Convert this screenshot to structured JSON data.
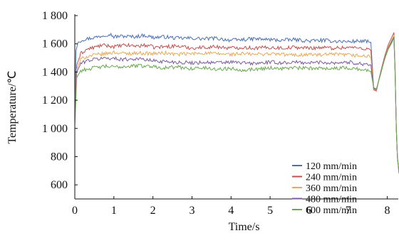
{
  "chart_data": {
    "type": "line",
    "xlabel": "Time/s",
    "ylabel": "Temperature/℃",
    "xlim": [
      0,
      8.3
    ],
    "ylim": [
      500,
      1800
    ],
    "x_ticks": [
      {
        "value": 0,
        "label": "0"
      },
      {
        "value": 1,
        "label": "1"
      },
      {
        "value": 2,
        "label": "2"
      },
      {
        "value": 3,
        "label": "3"
      },
      {
        "value": 4,
        "label": "4"
      },
      {
        "value": 5,
        "label": "5"
      },
      {
        "value": 6,
        "label": "6"
      },
      {
        "value": 7,
        "label": "7"
      },
      {
        "value": 8,
        "label": "8"
      }
    ],
    "y_ticks": [
      {
        "value": 600,
        "label": "600"
      },
      {
        "value": 800,
        "label": "800"
      },
      {
        "value": 1000,
        "label": "1 000"
      },
      {
        "value": 1200,
        "label": "1 200"
      },
      {
        "value": 1400,
        "label": "1 400"
      },
      {
        "value": 1600,
        "label": "1 600"
      },
      {
        "value": 1800,
        "label": "1 800"
      }
    ],
    "grid": false,
    "legend_position": "right",
    "series": [
      {
        "name": "120 mm/min",
        "color": "#4a6fb5",
        "points": [
          [
            0,
            1150
          ],
          [
            0.03,
            1550
          ],
          [
            0.08,
            1610
          ],
          [
            0.2,
            1630
          ],
          [
            0.4,
            1640
          ],
          [
            0.6,
            1650
          ],
          [
            0.8,
            1665
          ],
          [
            0.9,
            1670
          ],
          [
            1.0,
            1650
          ],
          [
            1.2,
            1655
          ],
          [
            1.5,
            1650
          ],
          [
            1.8,
            1660
          ],
          [
            2.0,
            1645
          ],
          [
            2.3,
            1650
          ],
          [
            2.6,
            1640
          ],
          [
            3.0,
            1640
          ],
          [
            3.3,
            1635
          ],
          [
            3.6,
            1640
          ],
          [
            4.0,
            1625
          ],
          [
            4.3,
            1630
          ],
          [
            4.6,
            1635
          ],
          [
            5.0,
            1630
          ],
          [
            5.3,
            1625
          ],
          [
            5.6,
            1630
          ],
          [
            6.0,
            1620
          ],
          [
            6.3,
            1625
          ],
          [
            6.6,
            1620
          ],
          [
            7.0,
            1615
          ],
          [
            7.3,
            1620
          ],
          [
            7.5,
            1615
          ],
          [
            7.58,
            1610
          ],
          [
            7.65,
            1290
          ],
          [
            7.72,
            1270
          ],
          [
            7.82,
            1380
          ],
          [
            7.92,
            1480
          ],
          [
            8.02,
            1570
          ],
          [
            8.12,
            1620
          ],
          [
            8.17,
            1650
          ],
          [
            8.2,
            1400
          ],
          [
            8.23,
            1000
          ],
          [
            8.26,
            800
          ],
          [
            8.3,
            690
          ]
        ]
      },
      {
        "name": "240 mm/min",
        "color": "#c0504d",
        "points": [
          [
            0,
            1100
          ],
          [
            0.05,
            1450
          ],
          [
            0.15,
            1530
          ],
          [
            0.3,
            1560
          ],
          [
            0.5,
            1575
          ],
          [
            0.7,
            1590
          ],
          [
            0.9,
            1585
          ],
          [
            1.0,
            1580
          ],
          [
            1.3,
            1590
          ],
          [
            1.6,
            1585
          ],
          [
            1.9,
            1590
          ],
          [
            2.0,
            1575
          ],
          [
            2.3,
            1580
          ],
          [
            2.6,
            1585
          ],
          [
            3.0,
            1570
          ],
          [
            3.3,
            1575
          ],
          [
            3.6,
            1580
          ],
          [
            4.0,
            1570
          ],
          [
            4.3,
            1575
          ],
          [
            4.6,
            1570
          ],
          [
            5.0,
            1575
          ],
          [
            5.3,
            1570
          ],
          [
            5.6,
            1575
          ],
          [
            6.0,
            1570
          ],
          [
            6.3,
            1575
          ],
          [
            6.6,
            1570
          ],
          [
            7.0,
            1575
          ],
          [
            7.3,
            1570
          ],
          [
            7.5,
            1565
          ],
          [
            7.58,
            1555
          ],
          [
            7.65,
            1275
          ],
          [
            7.72,
            1265
          ],
          [
            7.82,
            1390
          ],
          [
            7.92,
            1500
          ],
          [
            8.02,
            1590
          ],
          [
            8.12,
            1650
          ],
          [
            8.17,
            1680
          ],
          [
            8.2,
            1420
          ],
          [
            8.23,
            1010
          ],
          [
            8.26,
            790
          ],
          [
            8.3,
            680
          ]
        ]
      },
      {
        "name": "360 mm/min",
        "color": "#e8a957",
        "points": [
          [
            0,
            1080
          ],
          [
            0.05,
            1420
          ],
          [
            0.15,
            1490
          ],
          [
            0.3,
            1510
          ],
          [
            0.5,
            1520
          ],
          [
            0.8,
            1530
          ],
          [
            1.0,
            1540
          ],
          [
            1.3,
            1530
          ],
          [
            1.6,
            1535
          ],
          [
            2.0,
            1530
          ],
          [
            2.3,
            1535
          ],
          [
            2.6,
            1525
          ],
          [
            3.0,
            1530
          ],
          [
            3.3,
            1535
          ],
          [
            3.6,
            1530
          ],
          [
            4.0,
            1525
          ],
          [
            4.3,
            1530
          ],
          [
            4.6,
            1525
          ],
          [
            5.0,
            1530
          ],
          [
            5.3,
            1525
          ],
          [
            5.6,
            1520
          ],
          [
            6.0,
            1525
          ],
          [
            6.3,
            1520
          ],
          [
            6.6,
            1525
          ],
          [
            7.0,
            1520
          ],
          [
            7.3,
            1515
          ],
          [
            7.5,
            1510
          ],
          [
            7.58,
            1505
          ],
          [
            7.65,
            1280
          ],
          [
            7.72,
            1270
          ],
          [
            7.82,
            1385
          ],
          [
            7.92,
            1490
          ],
          [
            8.02,
            1575
          ],
          [
            8.12,
            1630
          ],
          [
            8.17,
            1660
          ],
          [
            8.2,
            1410
          ],
          [
            8.23,
            1005
          ],
          [
            8.26,
            795
          ],
          [
            8.3,
            685
          ]
        ]
      },
      {
        "name": "480 mm/min",
        "color": "#7b5b9e",
        "points": [
          [
            0,
            1050
          ],
          [
            0.05,
            1400
          ],
          [
            0.15,
            1460
          ],
          [
            0.3,
            1480
          ],
          [
            0.5,
            1490
          ],
          [
            0.8,
            1500
          ],
          [
            1.0,
            1495
          ],
          [
            1.3,
            1490
          ],
          [
            1.6,
            1495
          ],
          [
            2.0,
            1480
          ],
          [
            2.3,
            1475
          ],
          [
            2.6,
            1470
          ],
          [
            3.0,
            1465
          ],
          [
            3.3,
            1470
          ],
          [
            3.6,
            1465
          ],
          [
            4.0,
            1470
          ],
          [
            4.3,
            1465
          ],
          [
            4.6,
            1460
          ],
          [
            5.0,
            1470
          ],
          [
            5.3,
            1465
          ],
          [
            5.6,
            1470
          ],
          [
            6.0,
            1465
          ],
          [
            6.3,
            1470
          ],
          [
            6.6,
            1465
          ],
          [
            7.0,
            1470
          ],
          [
            7.3,
            1460
          ],
          [
            7.5,
            1455
          ],
          [
            7.58,
            1450
          ],
          [
            7.65,
            1285
          ],
          [
            7.72,
            1275
          ],
          [
            7.82,
            1380
          ],
          [
            7.92,
            1485
          ],
          [
            8.02,
            1565
          ],
          [
            8.12,
            1620
          ],
          [
            8.17,
            1645
          ],
          [
            8.2,
            1405
          ],
          [
            8.23,
            1000
          ],
          [
            8.26,
            795
          ],
          [
            8.3,
            688
          ]
        ]
      },
      {
        "name": "600 mm/min",
        "color": "#6aa84f",
        "points": [
          [
            0,
            1020
          ],
          [
            0.05,
            1360
          ],
          [
            0.15,
            1410
          ],
          [
            0.3,
            1420
          ],
          [
            0.5,
            1430
          ],
          [
            0.8,
            1440
          ],
          [
            1.0,
            1435
          ],
          [
            1.3,
            1440
          ],
          [
            1.6,
            1445
          ],
          [
            2.0,
            1440
          ],
          [
            2.3,
            1430
          ],
          [
            2.6,
            1435
          ],
          [
            3.0,
            1425
          ],
          [
            3.3,
            1430
          ],
          [
            3.6,
            1420
          ],
          [
            4.0,
            1425
          ],
          [
            4.3,
            1415
          ],
          [
            4.6,
            1420
          ],
          [
            5.0,
            1430
          ],
          [
            5.3,
            1425
          ],
          [
            5.6,
            1430
          ],
          [
            6.0,
            1425
          ],
          [
            6.3,
            1430
          ],
          [
            6.6,
            1425
          ],
          [
            7.0,
            1430
          ],
          [
            7.3,
            1420
          ],
          [
            7.5,
            1410
          ],
          [
            7.58,
            1405
          ],
          [
            7.65,
            1290
          ],
          [
            7.72,
            1280
          ],
          [
            7.82,
            1375
          ],
          [
            7.92,
            1480
          ],
          [
            8.02,
            1560
          ],
          [
            8.12,
            1610
          ],
          [
            8.17,
            1640
          ],
          [
            8.2,
            1400
          ],
          [
            8.23,
            995
          ],
          [
            8.26,
            790
          ],
          [
            8.3,
            690
          ]
        ]
      }
    ]
  }
}
